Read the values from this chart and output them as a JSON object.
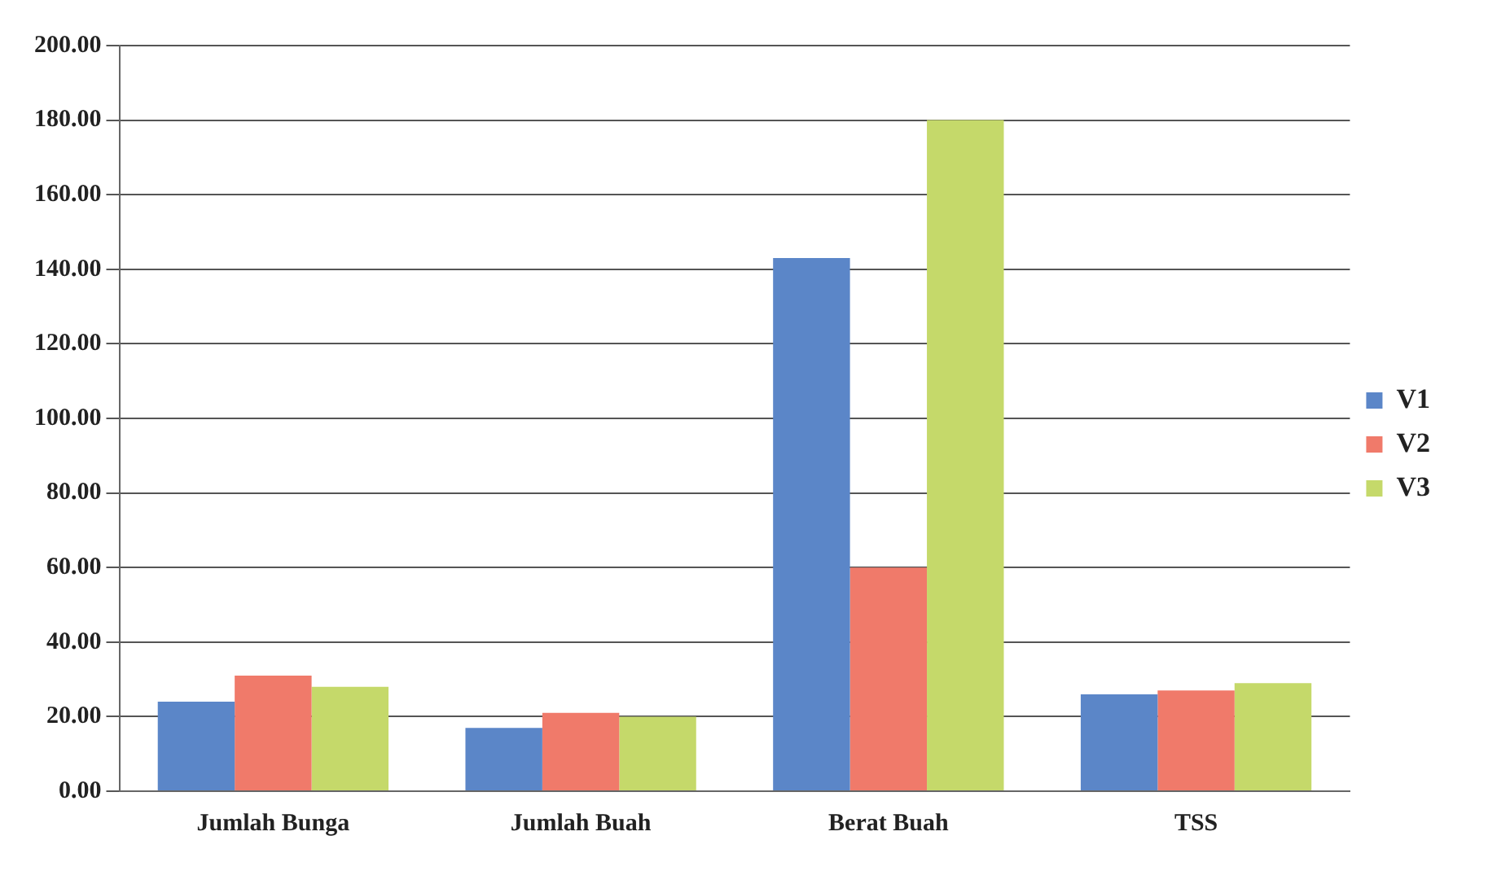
{
  "chart_data": {
    "type": "bar",
    "categories": [
      "Jumlah Bunga",
      "Jumlah Buah",
      "Berat Buah",
      "TSS"
    ],
    "series": [
      {
        "name": "V1",
        "color": "#5b86c8",
        "values": [
          24,
          17,
          143,
          26
        ]
      },
      {
        "name": "V2",
        "color": "#f07a6a",
        "values": [
          31,
          21,
          60,
          27
        ]
      },
      {
        "name": "V3",
        "color": "#c5d96a",
        "values": [
          28,
          20,
          180,
          29
        ]
      }
    ],
    "ylim": [
      0,
      200
    ],
    "yticks": [
      {
        "value": 0,
        "label": "0.00"
      },
      {
        "value": 20,
        "label": "20.00"
      },
      {
        "value": 40,
        "label": "40.00"
      },
      {
        "value": 60,
        "label": "60.00"
      },
      {
        "value": 80,
        "label": "80.00"
      },
      {
        "value": 100,
        "label": "100.00"
      },
      {
        "value": 120,
        "label": "120.00"
      },
      {
        "value": 140,
        "label": "140.00"
      },
      {
        "value": 160,
        "label": "160.00"
      },
      {
        "value": 180,
        "label": "180.00"
      },
      {
        "value": 200,
        "label": "200.00"
      }
    ],
    "grid": "y",
    "legend": "right"
  }
}
